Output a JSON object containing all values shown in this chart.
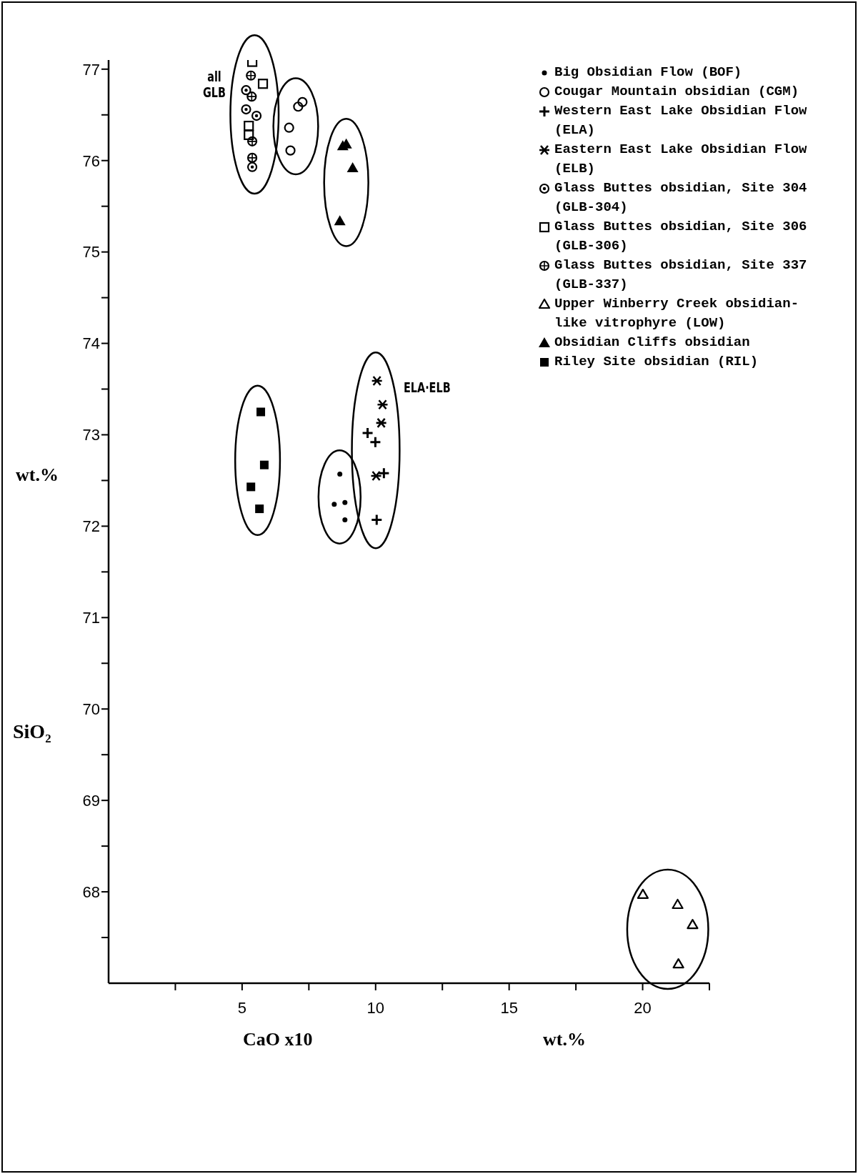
{
  "chart_data": {
    "type": "scatter",
    "xlabel": "CaO x10",
    "ylabel": "SiO₂",
    "legend": "top right",
    "xlim": [
      0,
      22.5
    ],
    "ylim": [
      67,
      77.1
    ],
    "xticks": [
      {
        "value": 2.5,
        "label": null
      },
      5,
      {
        "value": 7.5,
        "label": null
      },
      10,
      {
        "value": 12.5,
        "label": null
      },
      15,
      {
        "value": 17.5,
        "label": null
      },
      20,
      {
        "value": 22.5,
        "label": null
      }
    ],
    "yticks": [
      {
        "value": 67.5,
        "label": null
      },
      68,
      {
        "value": 68.5,
        "label": null
      },
      69,
      {
        "value": 69.5,
        "label": null
      },
      70,
      {
        "value": 70.5,
        "label": null
      },
      71,
      {
        "value": 71.5,
        "label": null
      },
      72,
      {
        "value": 72.5,
        "label": null
      },
      73,
      {
        "value": 73.5,
        "label": null
      },
      74,
      {
        "value": 74.5,
        "label": null
      },
      75,
      {
        "value": 75.5,
        "label": null
      },
      76,
      {
        "value": 76.5,
        "label": null
      },
      77
    ],
    "annotations": [
      "all GLB",
      "ELA·ELB",
      "wt.%",
      "wt.%"
    ],
    "series": [
      {
        "name": "Big Obsidian Flow (BOF)",
        "color": "#000000",
        "x": [
          8.66,
          8.45,
          8.85,
          8.85
        ],
        "values": [
          72.57,
          72.24,
          72.26,
          72.07
        ]
      },
      {
        "name": "Cougar Mountain obsidian (CGM)",
        "color": "#000000",
        "x": [
          7.1,
          7.26,
          6.76,
          6.81
        ],
        "values": [
          76.59,
          76.64,
          76.36,
          76.11
        ]
      },
      {
        "name": "Western East Lake Obsidian Flow (ELA)",
        "color": "#000000",
        "x": [
          9.7,
          9.99,
          10.31,
          10.04
        ],
        "values": [
          73.02,
          72.92,
          72.58,
          72.07
        ]
      },
      {
        "name": "Eastern East Lake Obsidian Flow (ELB)",
        "color": "#000000",
        "x": [
          10.05,
          10.26,
          10.21,
          10.02
        ],
        "values": [
          73.59,
          73.33,
          73.13,
          72.55
        ]
      },
      {
        "name": "Glass Buttes obsidian, Site 304 (GLB-304)",
        "color": "#000000",
        "x": [
          5.15,
          5.15,
          5.54,
          5.38
        ],
        "values": [
          76.77,
          76.56,
          76.49,
          75.93
        ]
      },
      {
        "name": "Glass Buttes obsidian, Site 306 (GLB-306)",
        "color": "#000000",
        "x": [
          5.38,
          5.78,
          5.25,
          5.25
        ],
        "values": [
          77.08,
          76.84,
          76.38,
          76.28
        ]
      },
      {
        "name": "Glass Buttes obsidian, Site 337 (GLB-337)",
        "color": "#000000",
        "x": [
          5.33,
          5.36,
          5.38,
          5.38
        ],
        "values": [
          76.93,
          76.7,
          76.21,
          76.03
        ]
      },
      {
        "name": "Upper Winberry Creek obsidian-like vitrophyre (LOW)",
        "color": "#000000",
        "x": [
          20.01,
          21.31,
          21.87,
          21.34
        ],
        "values": [
          67.97,
          67.86,
          67.64,
          67.21
        ]
      },
      {
        "name": "Obsidian Cliffs obsidian",
        "color": "#000000",
        "x": [
          8.77,
          8.9,
          9.14,
          8.66
        ],
        "values": [
          76.16,
          76.18,
          75.92,
          75.34
        ]
      },
      {
        "name": "Riley Site obsidian (RIL)",
        "color": "#000000",
        "x": [
          5.7,
          5.83,
          5.33,
          5.65
        ],
        "values": [
          73.25,
          72.67,
          72.43,
          72.19
        ]
      }
    ]
  }
}
